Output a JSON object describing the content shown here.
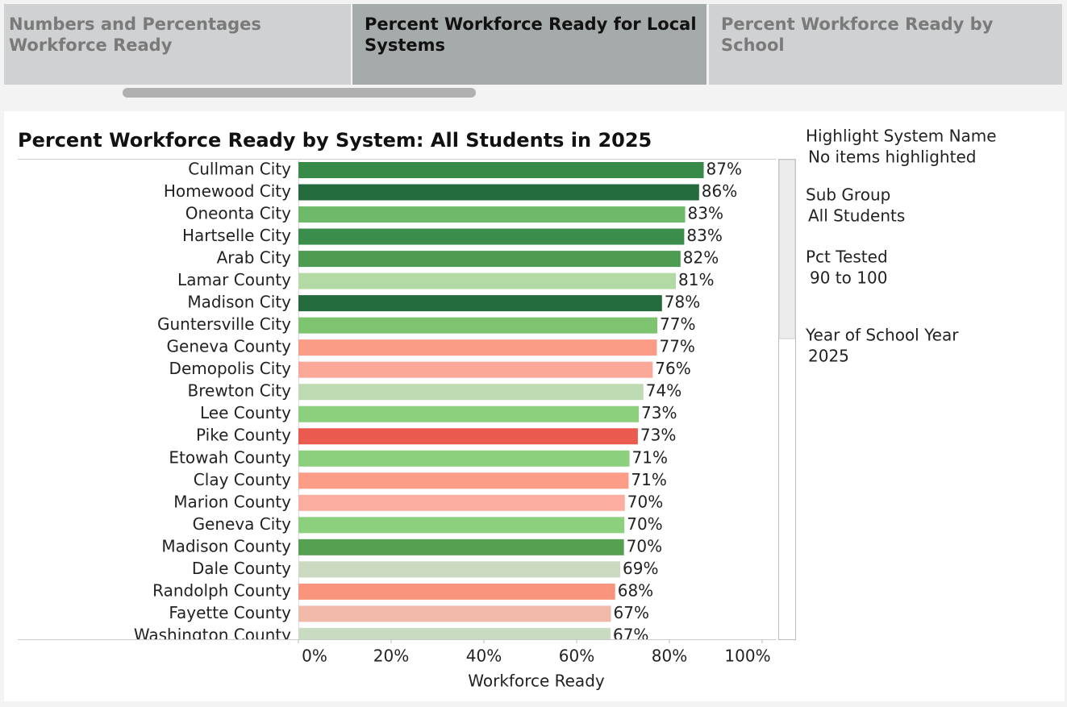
{
  "tabs": [
    {
      "label": "Numbers and Percentages Workforce Ready"
    },
    {
      "label": "Percent Workforce Ready for Local Systems"
    },
    {
      "label": "Percent Workforce Ready by School"
    }
  ],
  "chart_data": {
    "type": "bar",
    "orientation": "horizontal",
    "title": "Percent Workforce Ready by System: All Students in 2025",
    "x_label": "Workforce Ready",
    "categories": [
      "Cullman City",
      "Homewood City",
      "Oneonta City",
      "Hartselle City",
      "Arab City",
      "Lamar County",
      "Madison City",
      "Guntersville City",
      "Geneva County",
      "Demopolis City",
      "Brewton City",
      "Lee County",
      "Pike County",
      "Etowah County",
      "Clay County",
      "Marion County",
      "Geneva City",
      "Madison County",
      "Dale County",
      "Randolph County",
      "Fayette County",
      "Washington County"
    ],
    "values": [
      87.4,
      86.4,
      83.4,
      83.2,
      82.4,
      81.4,
      78.4,
      77.4,
      77.3,
      76.4,
      74.4,
      73.4,
      73.2,
      71.4,
      71.2,
      70.4,
      70.3,
      70.2,
      69.4,
      68.3,
      67.4,
      67.3
    ],
    "value_labels": [
      "87%",
      "86%",
      "83%",
      "83%",
      "82%",
      "81%",
      "78%",
      "77%",
      "77%",
      "76%",
      "74%",
      "73%",
      "73%",
      "71%",
      "71%",
      "70%",
      "70%",
      "70%",
      "69%",
      "68%",
      "67%",
      "67%"
    ],
    "colors": [
      "#378a48",
      "#236b3d",
      "#6fb96a",
      "#3a8d4a",
      "#4e9c52",
      "#b3d9a5",
      "#236b3d",
      "#7ec470",
      "#fb9c86",
      "#fba898",
      "#bfdbb4",
      "#8ccf7c",
      "#ea5a4f",
      "#8ccf7c",
      "#fb9d87",
      "#fbae9f",
      "#8ccf7c",
      "#56a151",
      "#cad9c0",
      "#f9957c",
      "#f0b9a9",
      "#c9dcc1"
    ],
    "xlim": [
      0,
      100
    ],
    "xticks": [
      {
        "value": 0,
        "label": "0%"
      },
      {
        "value": 20,
        "label": "20%"
      },
      {
        "value": 40,
        "label": "40%"
      },
      {
        "value": 60,
        "label": "60%"
      },
      {
        "value": 80,
        "label": "80%"
      },
      {
        "value": 100,
        "label": "100%"
      }
    ]
  },
  "filters": [
    {
      "label": "Highlight System Name",
      "value": "No items highlighted"
    },
    {
      "label": "Sub Group",
      "value": "All Students"
    },
    {
      "label": "Pct Tested",
      "value": "90 to 100"
    },
    {
      "label": "Year of School Year",
      "value": "2025"
    }
  ]
}
